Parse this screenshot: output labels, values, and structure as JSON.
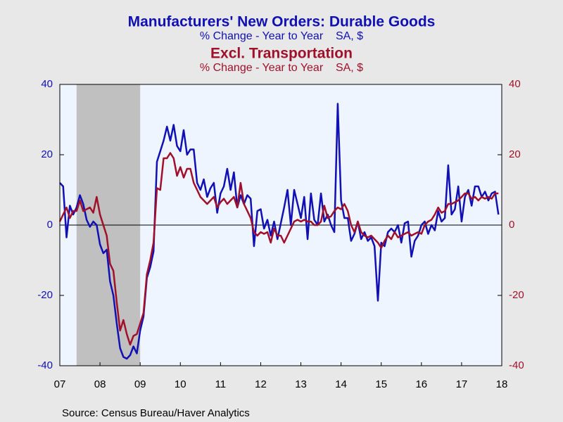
{
  "chart_data": {
    "type": "line",
    "title": "Manufacturers' New Orders: Durable Goods",
    "subtitle": "% Change - Year to Year    SA, $",
    "title2": "Excl. Transportation",
    "subtitle2": "% Change - Year to Year    SA, $",
    "source": "Source:  Census Bureau/Haver Analytics",
    "x": [
      2007.5,
      2007.583,
      2007.667,
      2007.75,
      2007.833,
      2007.917,
      2008,
      2008.083,
      2008.167,
      2008.25,
      2008.333,
      2008.417,
      2008.5,
      2008.583,
      2008.667,
      2008.75,
      2008.833,
      2008.917,
      2009,
      2009.083,
      2009.167,
      2009.25,
      2009.333,
      2009.417,
      2009.5,
      2009.583,
      2009.667,
      2009.75,
      2009.833,
      2009.917,
      2010,
      2010.083,
      2010.167,
      2010.25,
      2010.333,
      2010.417,
      2010.5,
      2010.583,
      2010.667,
      2010.75,
      2010.833,
      2010.917,
      2011,
      2011.083,
      2011.167,
      2011.25,
      2011.333,
      2011.417,
      2011.5,
      2011.583,
      2011.667,
      2011.75,
      2011.833,
      2011.917,
      2012,
      2012.083,
      2012.167,
      2012.25,
      2012.333,
      2012.417,
      2012.5,
      2012.583,
      2012.667,
      2012.75,
      2012.833,
      2012.917,
      2013,
      2013.083,
      2013.167,
      2013.25,
      2013.333,
      2013.417,
      2013.5,
      2013.583,
      2013.667,
      2013.75,
      2013.833,
      2013.917,
      2014,
      2014.083,
      2014.167,
      2014.25,
      2014.333,
      2014.417,
      2014.5,
      2014.583,
      2014.667,
      2014.75,
      2014.833,
      2014.917,
      2015,
      2015.083,
      2015.167,
      2015.25,
      2015.333,
      2015.417,
      2015.5,
      2015.583,
      2015.667,
      2015.75,
      2015.833,
      2015.917,
      2016,
      2016.083,
      2016.167,
      2016.25,
      2016.333,
      2016.417,
      2016.5,
      2016.583,
      2016.667,
      2016.75,
      2016.833,
      2016.917,
      2017,
      2017.083,
      2017.167,
      2017.25,
      2017.333,
      2017.417,
      2017.5,
      2017.583,
      2017.667,
      2017.75,
      2017.833,
      2017.917,
      2018,
      2018.083,
      2018.167,
      2018.25,
      2018.333,
      2018.417
    ],
    "series": [
      {
        "name": "Manufacturers' New Orders: Durable Goods",
        "color": "#1010b4",
        "values": [
          12,
          11,
          -3.5,
          5.5,
          3,
          5,
          8.5,
          6,
          1.5,
          -0.5,
          1,
          0,
          -5.5,
          -8,
          -7,
          -16,
          -20,
          -28,
          -35,
          -37.5,
          -38,
          -37,
          -34.5,
          -36.5,
          -30,
          -26,
          -15,
          -12,
          -7.5,
          18,
          21,
          24,
          28,
          24,
          28.5,
          22.5,
          21,
          27,
          20,
          21.5,
          21.5,
          12,
          10,
          13,
          8,
          10.5,
          12,
          3.5,
          9,
          11,
          16,
          10,
          15,
          5,
          8.5,
          6,
          8.5,
          7.5,
          -6,
          4,
          4.5,
          -1,
          1.5,
          -3,
          1,
          -4,
          0.5,
          5,
          10,
          0,
          10,
          6,
          2,
          8,
          -4,
          9,
          1.5,
          0,
          9,
          1,
          3,
          0,
          -2,
          34.5,
          7,
          2,
          2,
          -4.5,
          -2.5,
          1,
          -4,
          -2,
          -4.5,
          -3.5,
          -6,
          -21.5,
          -5,
          -6,
          -2,
          -1,
          -2,
          0,
          -5,
          0.5,
          1,
          -9,
          -4.5,
          -3,
          0,
          1,
          -2.5,
          0,
          -1.5,
          4,
          1,
          2,
          17,
          3,
          4.5,
          11,
          1,
          8,
          10,
          5.5,
          11,
          11,
          8,
          9.5,
          7,
          9,
          9.5,
          3
        ]
      },
      {
        "name": "Excl. Transportation",
        "color": "#a0102a",
        "values": [
          1,
          3,
          5,
          2,
          4,
          4,
          7,
          4,
          4.5,
          5,
          3.5,
          8,
          3,
          0,
          -3,
          -11,
          -13,
          -22,
          -30,
          -27,
          -31,
          -34,
          -31.5,
          -31,
          -28,
          -25,
          -14,
          -10,
          -5,
          10.5,
          10,
          19,
          19,
          20.5,
          19,
          14,
          16.5,
          13.5,
          16,
          16,
          12,
          10,
          8,
          7,
          6,
          7,
          8,
          5,
          6.5,
          7.5,
          6,
          7,
          8,
          5,
          12,
          6,
          4,
          2,
          -2,
          -3,
          -2,
          -2.5,
          -2,
          -5,
          -1,
          -3,
          -3,
          -5,
          -3,
          -1,
          1,
          1.5,
          1,
          1.5,
          1,
          1,
          0,
          0,
          1,
          5.5,
          2,
          2.5,
          4,
          5,
          4.5,
          6,
          4,
          0,
          -2,
          1,
          -2,
          -3,
          -3.5,
          -3,
          -4,
          -5,
          -6.5,
          -4.5,
          -3,
          -4,
          -2,
          -3.5,
          -3,
          -2.5,
          -2,
          -3,
          -2.5,
          -2,
          -2.5,
          0,
          1,
          1.5,
          3,
          5,
          3.5,
          4,
          6,
          6,
          6.5,
          7,
          8,
          9,
          9,
          7.5,
          8,
          7,
          8,
          7.5,
          8,
          7.5,
          9,
          9
        ]
      }
    ],
    "recession": {
      "start": 2007.917,
      "end": 2009.5,
      "color": "#c0c0c0"
    },
    "xlim": [
      2007.5,
      2018.5
    ],
    "xticks": [
      {
        "value": 2007.5,
        "label": "07"
      },
      {
        "value": 2008.5,
        "label": "08"
      },
      {
        "value": 2009.5,
        "label": "09"
      },
      {
        "value": 2010.5,
        "label": "10"
      },
      {
        "value": 2011.5,
        "label": "11"
      },
      {
        "value": 2012.5,
        "label": "12"
      },
      {
        "value": 2013.5,
        "label": "13"
      },
      {
        "value": 2014.5,
        "label": "14"
      },
      {
        "value": 2015.5,
        "label": "15"
      },
      {
        "value": 2016.5,
        "label": "16"
      },
      {
        "value": 2017.5,
        "label": "17"
      },
      {
        "value": 2018.5,
        "label": "18"
      }
    ],
    "ylim": [
      -40,
      40
    ],
    "yticks": [
      -40,
      -20,
      0,
      20,
      40
    ],
    "y2lim": [
      -40,
      40
    ],
    "y2ticks": [
      -40,
      -20,
      0,
      20,
      40
    ]
  }
}
